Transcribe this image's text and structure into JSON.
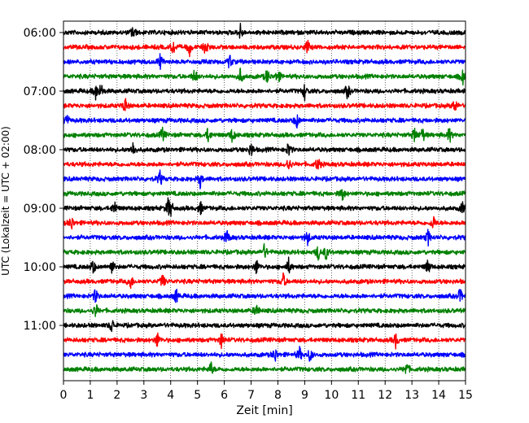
{
  "chart_data": {
    "type": "line",
    "xlabel": "Zeit  [min]",
    "ylabel": "UTC (Lokalzeit = UTC + 02:00)",
    "xlim": [
      0,
      15
    ],
    "x_ticks": [
      0,
      1,
      2,
      3,
      4,
      5,
      6,
      7,
      8,
      9,
      10,
      11,
      12,
      13,
      14,
      15
    ],
    "x_tick_labels": [
      "0",
      "1",
      "2",
      "3",
      "4",
      "5",
      "6",
      "7",
      "8",
      "9",
      "10",
      "11",
      "12",
      "13",
      "14",
      "15"
    ],
    "y_tick_labels": [
      "06:00",
      "07:00",
      "08:00",
      "09:00",
      "10:00",
      "11:00"
    ],
    "y_tick_rows": [
      0,
      4,
      8,
      12,
      16,
      20
    ],
    "grid": "vertical-dotted",
    "row_colors": [
      "#000000",
      "#ff0000",
      "#0000ff",
      "#008000"
    ],
    "rows": [
      {
        "row": 0,
        "color": "#000000",
        "spikes": [
          2.6,
          6.6
        ]
      },
      {
        "row": 1,
        "color": "#ff0000",
        "spikes": [
          4.1,
          4.7,
          5.3,
          9.1
        ]
      },
      {
        "row": 2,
        "color": "#0000ff",
        "spikes": [
          3.6,
          6.2
        ]
      },
      {
        "row": 3,
        "color": "#008000",
        "spikes": [
          4.9,
          6.6,
          7.6,
          8.0,
          14.9
        ]
      },
      {
        "row": 4,
        "color": "#000000",
        "spikes": [
          1.2,
          1.4,
          9.0,
          10.6
        ]
      },
      {
        "row": 5,
        "color": "#ff0000",
        "spikes": [
          2.3,
          14.6
        ]
      },
      {
        "row": 6,
        "color": "#0000ff",
        "spikes": [
          0.1,
          8.7
        ]
      },
      {
        "row": 7,
        "color": "#008000",
        "spikes": [
          3.7,
          5.4,
          6.3,
          13.1,
          13.4,
          14.4
        ]
      },
      {
        "row": 8,
        "color": "#000000",
        "spikes": [
          2.6,
          7.0,
          8.4
        ]
      },
      {
        "row": 9,
        "color": "#ff0000",
        "spikes": [
          8.4,
          9.5
        ]
      },
      {
        "row": 10,
        "color": "#0000ff",
        "spikes": [
          3.6,
          5.1
        ]
      },
      {
        "row": 11,
        "color": "#008000",
        "spikes": [
          10.4
        ]
      },
      {
        "row": 12,
        "color": "#000000",
        "spikes": [
          1.9,
          3.9,
          4.0,
          5.1,
          14.9
        ]
      },
      {
        "row": 13,
        "color": "#ff0000",
        "spikes": [
          0.3,
          13.8
        ]
      },
      {
        "row": 14,
        "color": "#0000ff",
        "spikes": [
          6.1,
          9.1,
          13.6
        ]
      },
      {
        "row": 15,
        "color": "#008000",
        "spikes": [
          7.5,
          9.5,
          9.8
        ]
      },
      {
        "row": 16,
        "color": "#000000",
        "spikes": [
          1.1,
          1.8,
          7.2,
          8.4,
          13.6
        ]
      },
      {
        "row": 17,
        "color": "#ff0000",
        "spikes": [
          2.5,
          3.7,
          8.2
        ]
      },
      {
        "row": 18,
        "color": "#0000ff",
        "spikes": [
          1.2,
          4.2,
          14.8
        ]
      },
      {
        "row": 19,
        "color": "#008000",
        "spikes": [
          1.2,
          7.2
        ]
      },
      {
        "row": 20,
        "color": "#000000",
        "spikes": [
          1.8
        ]
      },
      {
        "row": 21,
        "color": "#ff0000",
        "spikes": [
          3.5,
          5.9,
          12.4
        ]
      },
      {
        "row": 22,
        "color": "#0000ff",
        "spikes": [
          7.9,
          8.8,
          9.2
        ]
      },
      {
        "row": 23,
        "color": "#008000",
        "spikes": [
          5.5,
          12.8
        ]
      }
    ]
  }
}
